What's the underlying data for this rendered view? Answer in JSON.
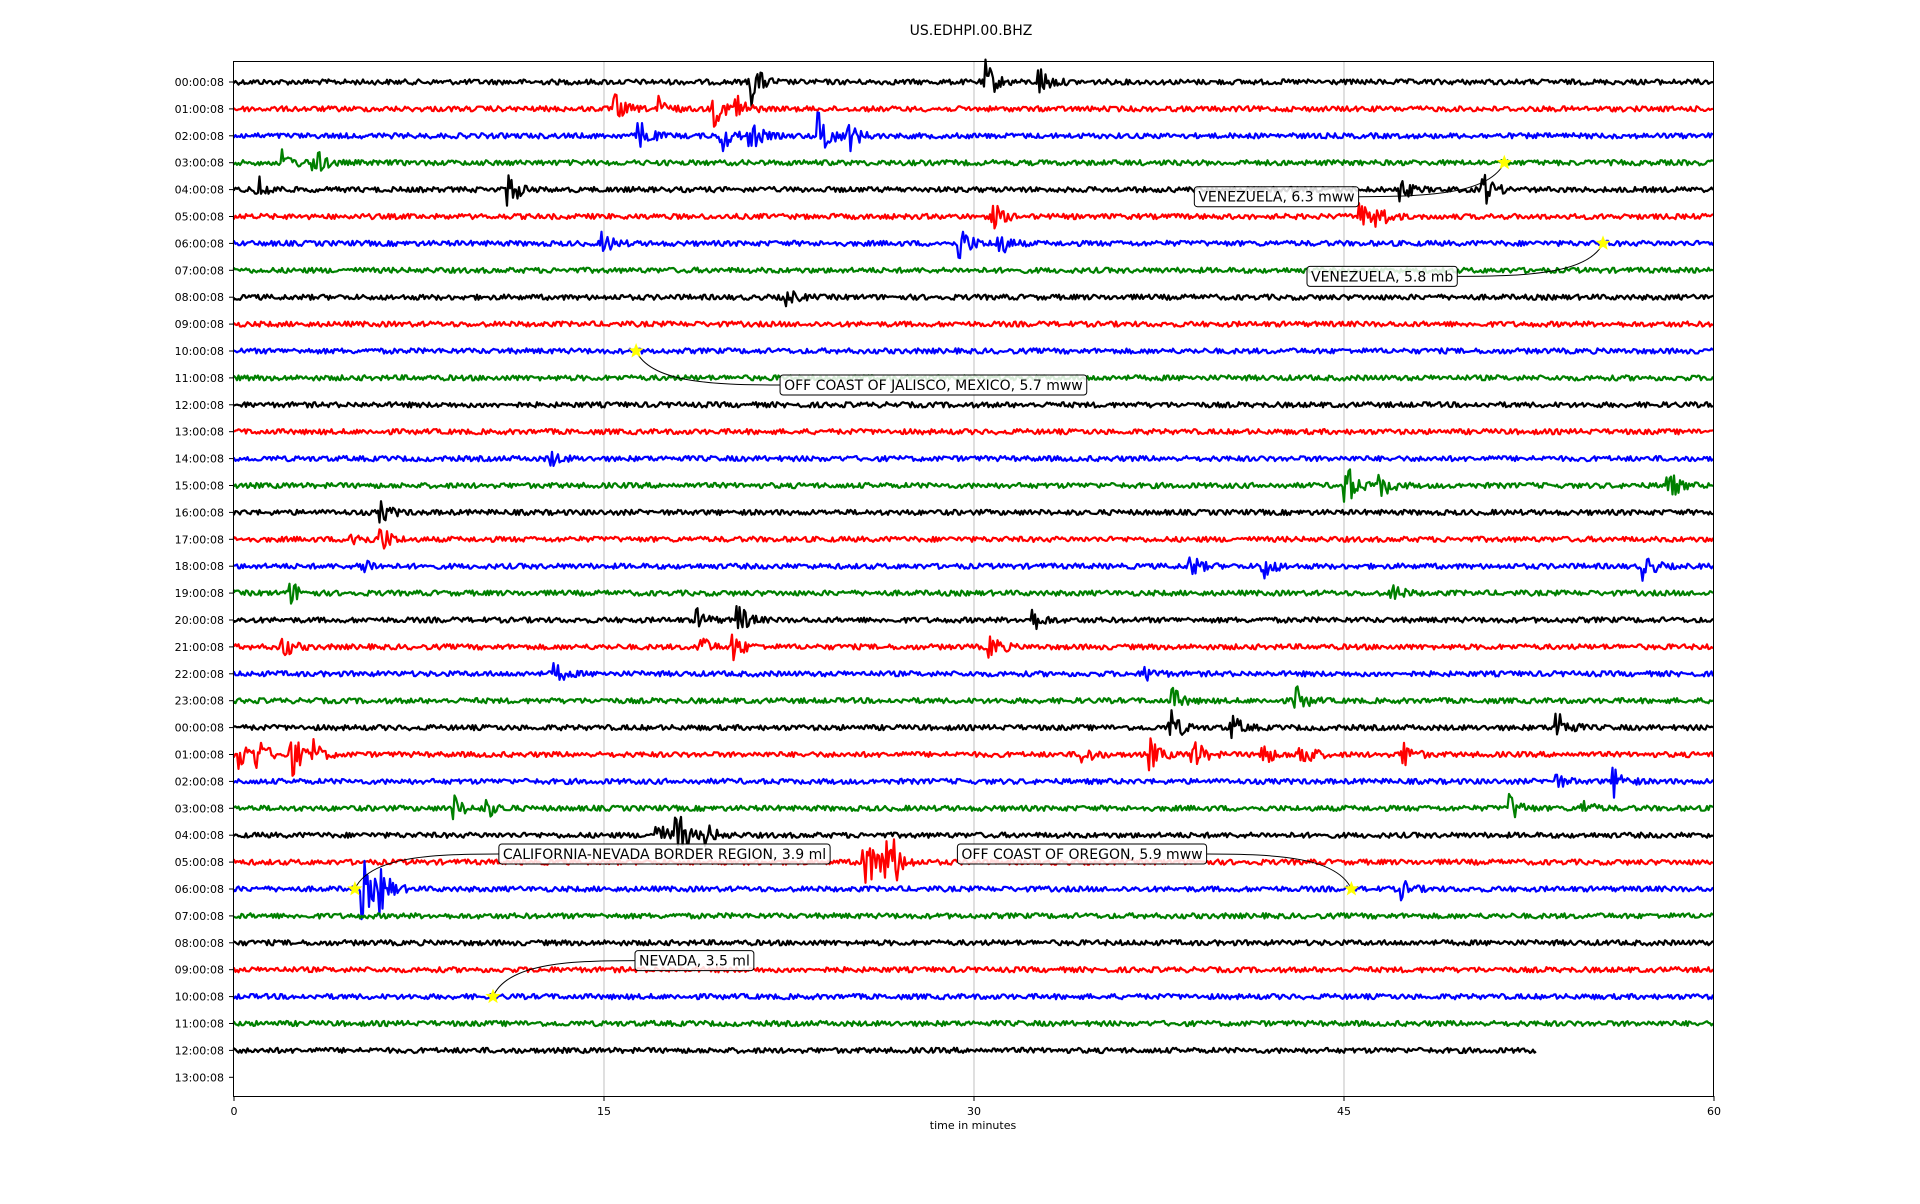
{
  "chart_data": {
    "type": "line",
    "chart_kind": "helicorder",
    "title": "US.EDHPI.00.BHZ",
    "xlabel": "time in minutes",
    "ylabel": "",
    "xlim": [
      0,
      60
    ],
    "xticks": [
      0,
      15,
      30,
      45,
      60
    ],
    "grid": "vertical lines at 15, 30, 45",
    "trace_colors": [
      "#000000",
      "#ff0000",
      "#0000ff",
      "#008000"
    ],
    "marker_color": "#ffff00",
    "row_labels": [
      "00:00:08",
      "01:00:08",
      "02:00:08",
      "03:00:08",
      "04:00:08",
      "05:00:08",
      "06:00:08",
      "07:00:08",
      "08:00:08",
      "09:00:08",
      "10:00:08",
      "11:00:08",
      "12:00:08",
      "13:00:08",
      "14:00:08",
      "15:00:08",
      "16:00:08",
      "17:00:08",
      "18:00:08",
      "19:00:08",
      "20:00:08",
      "21:00:08",
      "22:00:08",
      "23:00:08",
      "00:00:08",
      "01:00:08",
      "02:00:08",
      "03:00:08",
      "04:00:08",
      "05:00:08",
      "06:00:08",
      "07:00:08",
      "08:00:08",
      "09:00:08",
      "10:00:08",
      "11:00:08",
      "12:00:08",
      "13:00:08"
    ],
    "last_trace_end_minute": 52.8,
    "events": [
      {
        "label": "VENEZUELA, 6.3 mww",
        "row": 3,
        "minute": 51.5
      },
      {
        "label": "VENEZUELA, 5.8 mb",
        "row": 6,
        "minute": 55.5
      },
      {
        "label": "OFF COAST OF JALISCO, MEXICO, 5.7 mww",
        "row": 10,
        "minute": 16.3
      },
      {
        "label": "CALIFORNIA-NEVADA BORDER REGION, 3.9 ml",
        "row": 30,
        "minute": 4.9
      },
      {
        "label": "OFF COAST OF OREGON, 5.9 mww",
        "row": 30,
        "minute": 45.3
      },
      {
        "label": "NEVADA, 3.5 ml",
        "row": 34,
        "minute": 10.5
      }
    ],
    "bursts": [
      {
        "row": 0,
        "minute": 21.0,
        "amp": 1.6
      },
      {
        "row": 0,
        "minute": 30.5,
        "amp": 1.5
      },
      {
        "row": 0,
        "minute": 32.7,
        "amp": 1.0
      },
      {
        "row": 1,
        "minute": 15.5,
        "amp": 0.9
      },
      {
        "row": 1,
        "minute": 17.2,
        "amp": 0.8
      },
      {
        "row": 1,
        "minute": 19.5,
        "amp": 1.1
      },
      {
        "row": 1,
        "minute": 20.3,
        "amp": 1.4
      },
      {
        "row": 2,
        "minute": 16.5,
        "amp": 1.0
      },
      {
        "row": 2,
        "minute": 19.8,
        "amp": 1.1
      },
      {
        "row": 2,
        "minute": 21.0,
        "amp": 1.0
      },
      {
        "row": 2,
        "minute": 23.8,
        "amp": 1.8
      },
      {
        "row": 2,
        "minute": 25.0,
        "amp": 0.9
      },
      {
        "row": 3,
        "minute": 2.0,
        "amp": 0.8
      },
      {
        "row": 3,
        "minute": 3.3,
        "amp": 1.0
      },
      {
        "row": 4,
        "minute": 1.0,
        "amp": 1.0
      },
      {
        "row": 4,
        "minute": 11.2,
        "amp": 1.1
      },
      {
        "row": 4,
        "minute": 47.3,
        "amp": 0.8
      },
      {
        "row": 4,
        "minute": 50.7,
        "amp": 1.1
      },
      {
        "row": 5,
        "minute": 30.8,
        "amp": 0.9
      },
      {
        "row": 5,
        "minute": 45.7,
        "amp": 0.9
      },
      {
        "row": 5,
        "minute": 46.4,
        "amp": 0.8
      },
      {
        "row": 6,
        "minute": 29.5,
        "amp": 1.2
      },
      {
        "row": 6,
        "minute": 31.0,
        "amp": 1.0
      },
      {
        "row": 6,
        "minute": 15.0,
        "amp": 0.7
      },
      {
        "row": 8,
        "minute": 22.4,
        "amp": 0.6
      },
      {
        "row": 14,
        "minute": 12.8,
        "amp": 0.6
      },
      {
        "row": 15,
        "minute": 45.1,
        "amp": 1.6
      },
      {
        "row": 15,
        "minute": 46.5,
        "amp": 0.9
      },
      {
        "row": 15,
        "minute": 58.2,
        "amp": 1.0
      },
      {
        "row": 16,
        "minute": 6.0,
        "amp": 0.7
      },
      {
        "row": 17,
        "minute": 4.8,
        "amp": 0.7
      },
      {
        "row": 17,
        "minute": 6.0,
        "amp": 0.9
      },
      {
        "row": 18,
        "minute": 5.2,
        "amp": 0.7
      },
      {
        "row": 18,
        "minute": 38.8,
        "amp": 0.8
      },
      {
        "row": 18,
        "minute": 41.8,
        "amp": 0.8
      },
      {
        "row": 18,
        "minute": 57.2,
        "amp": 0.9
      },
      {
        "row": 19,
        "minute": 2.4,
        "amp": 0.7
      },
      {
        "row": 19,
        "minute": 47.0,
        "amp": 0.6
      },
      {
        "row": 20,
        "minute": 18.8,
        "amp": 0.7
      },
      {
        "row": 20,
        "minute": 20.5,
        "amp": 1.0
      },
      {
        "row": 20,
        "minute": 32.3,
        "amp": 1.0
      },
      {
        "row": 21,
        "minute": 2.0,
        "amp": 0.8
      },
      {
        "row": 21,
        "minute": 18.9,
        "amp": 0.8
      },
      {
        "row": 21,
        "minute": 20.3,
        "amp": 0.9
      },
      {
        "row": 21,
        "minute": 30.7,
        "amp": 0.9
      },
      {
        "row": 22,
        "minute": 13.1,
        "amp": 0.6
      },
      {
        "row": 22,
        "minute": 37.0,
        "amp": 0.5
      },
      {
        "row": 23,
        "minute": 38.1,
        "amp": 0.8
      },
      {
        "row": 23,
        "minute": 43.1,
        "amp": 0.9
      },
      {
        "row": 24,
        "minute": 38.0,
        "amp": 1.2
      },
      {
        "row": 24,
        "minute": 40.5,
        "amp": 0.8
      },
      {
        "row": 24,
        "minute": 53.7,
        "amp": 1.2
      },
      {
        "row": 25,
        "minute": 0.3,
        "amp": 1.0
      },
      {
        "row": 25,
        "minute": 1.0,
        "amp": 1.0
      },
      {
        "row": 25,
        "minute": 2.4,
        "amp": 1.4
      },
      {
        "row": 25,
        "minute": 3.2,
        "amp": 0.9
      },
      {
        "row": 25,
        "minute": 34.5,
        "amp": 0.6
      },
      {
        "row": 25,
        "minute": 37.2,
        "amp": 1.0
      },
      {
        "row": 25,
        "minute": 38.9,
        "amp": 1.2
      },
      {
        "row": 25,
        "minute": 41.7,
        "amp": 0.9
      },
      {
        "row": 25,
        "minute": 43.3,
        "amp": 1.2
      },
      {
        "row": 25,
        "minute": 47.4,
        "amp": 1.0
      },
      {
        "row": 26,
        "minute": 53.6,
        "amp": 0.5
      },
      {
        "row": 26,
        "minute": 56.0,
        "amp": 1.0
      },
      {
        "row": 27,
        "minute": 8.9,
        "amp": 0.9
      },
      {
        "row": 27,
        "minute": 10.3,
        "amp": 0.6
      },
      {
        "row": 27,
        "minute": 51.8,
        "amp": 0.9
      },
      {
        "row": 27,
        "minute": 54.7,
        "amp": 0.5
      },
      {
        "row": 28,
        "minute": 17.2,
        "amp": 0.9
      },
      {
        "row": 28,
        "minute": 18.0,
        "amp": 1.6
      },
      {
        "row": 28,
        "minute": 19.2,
        "amp": 0.7
      },
      {
        "row": 29,
        "minute": 25.6,
        "amp": 2.3
      },
      {
        "row": 29,
        "minute": 26.3,
        "amp": 1.0
      },
      {
        "row": 29,
        "minute": 26.6,
        "amp": 2.3
      },
      {
        "row": 30,
        "minute": 5.3,
        "amp": 2.0
      },
      {
        "row": 30,
        "minute": 6.0,
        "amp": 1.4
      },
      {
        "row": 30,
        "minute": 47.3,
        "amp": 0.7
      }
    ]
  }
}
